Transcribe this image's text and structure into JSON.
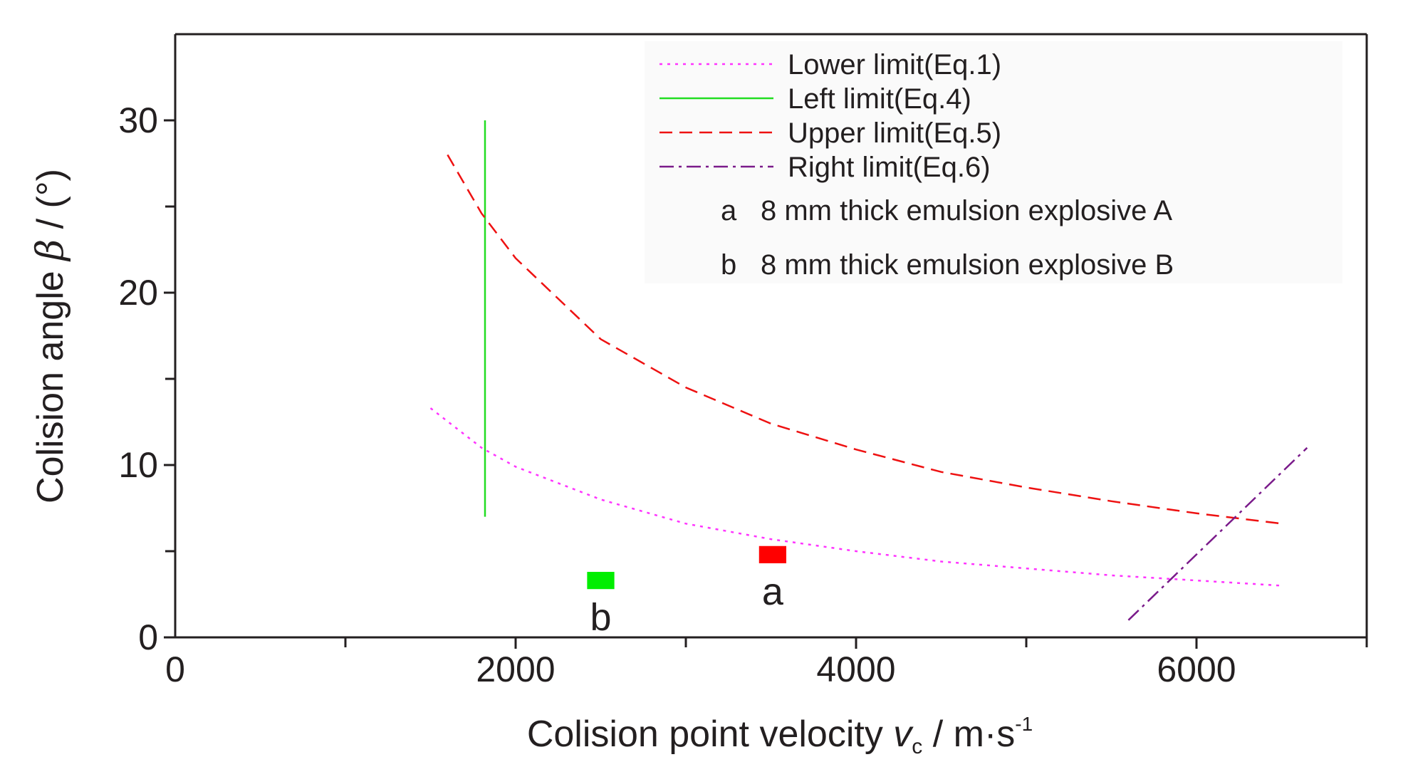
{
  "chart_data": {
    "type": "line",
    "xlabel_main": "Colision point velocity ",
    "xlabel_var": "v",
    "xlabel_sub": "c",
    "xlabel_unit": " / m·s",
    "xlabel_sup": "-1",
    "ylabel_main": "Colision angle ",
    "ylabel_var": "β",
    "ylabel_unit": " / (°)",
    "xlim": [
      0,
      7000
    ],
    "ylim": [
      0,
      35
    ],
    "x_ticks": [
      0,
      2000,
      4000,
      6000
    ],
    "x_minor_ticks": [
      1000,
      3000,
      5000,
      7000
    ],
    "y_ticks": [
      0,
      10,
      20,
      30
    ],
    "y_minor_ticks": [
      5,
      15,
      25
    ],
    "grid": false,
    "legend_position": "top-right",
    "series": [
      {
        "name": "Lower limit(Eq.1)",
        "color": "#ff33ff",
        "style": "dotted",
        "x": [
          1500,
          1800,
          2000,
          2500,
          3000,
          3500,
          4000,
          4500,
          5000,
          5500,
          6000,
          6500
        ],
        "y": [
          13.3,
          11.0,
          9.9,
          8.0,
          6.6,
          5.7,
          5.0,
          4.4,
          4.0,
          3.6,
          3.3,
          3.0
        ]
      },
      {
        "name": "Left limit(Eq.4)",
        "color": "#22dd22",
        "style": "solid",
        "x": [
          1820,
          1820
        ],
        "y": [
          7,
          30
        ]
      },
      {
        "name": "Upper limit(Eq.5)",
        "color": "#ee1111",
        "style": "dashed",
        "x": [
          1600,
          1800,
          2000,
          2500,
          3000,
          3500,
          4000,
          4500,
          5000,
          5500,
          6000,
          6500
        ],
        "y": [
          28.0,
          24.6,
          22.0,
          17.3,
          14.5,
          12.4,
          10.9,
          9.6,
          8.7,
          7.9,
          7.2,
          6.6
        ]
      },
      {
        "name": "Right limit(Eq.6)",
        "color": "#7a1a8a",
        "style": "dashdot",
        "x": [
          5600,
          6650
        ],
        "y": [
          1.0,
          11.0
        ]
      }
    ],
    "markers": [
      {
        "label": "a",
        "desc": "8 mm thick emulsion explosive A",
        "color": "#ff0000",
        "x_range": [
          3430,
          3590
        ],
        "y_range": [
          4.3,
          5.3
        ]
      },
      {
        "label": "b",
        "desc": "8 mm thick emulsion explosive B",
        "color": "#00ee00",
        "x_range": [
          2420,
          2580
        ],
        "y_range": [
          2.8,
          3.8
        ]
      }
    ]
  }
}
